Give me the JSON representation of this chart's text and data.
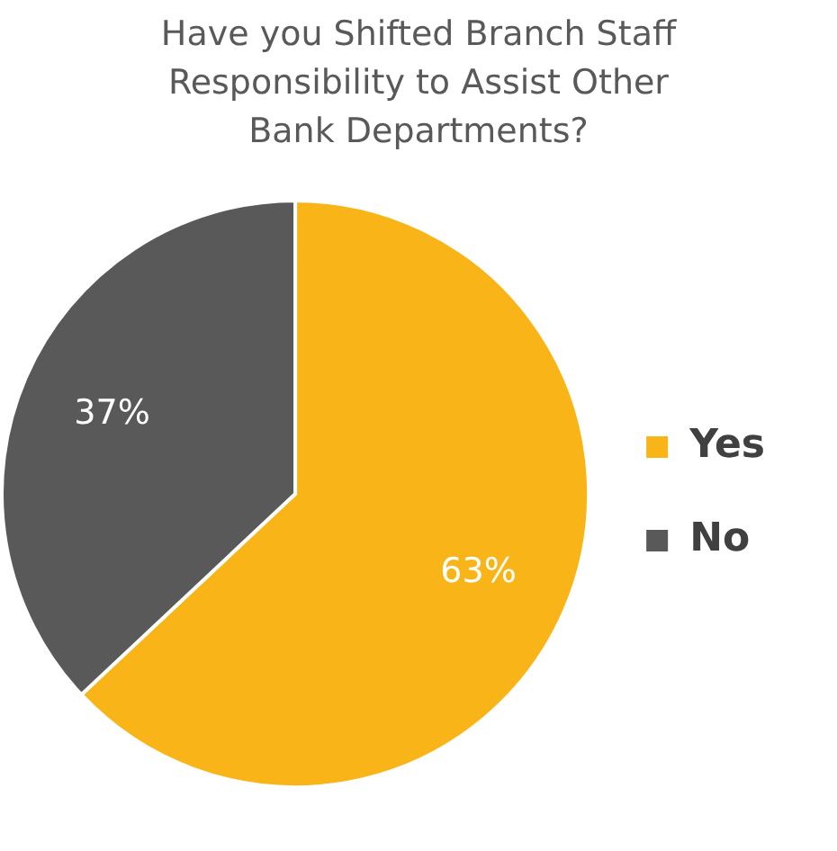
{
  "chart_data": {
    "type": "pie",
    "title": "Have you Shifted Branch Staff Responsibility to Assist Other Bank Departments?",
    "categories": [
      "Yes",
      "No"
    ],
    "values": [
      63,
      37
    ],
    "colors": [
      "#f9b418",
      "#595959"
    ],
    "value_labels": [
      "63%",
      "37%"
    ],
    "legend": "right"
  }
}
